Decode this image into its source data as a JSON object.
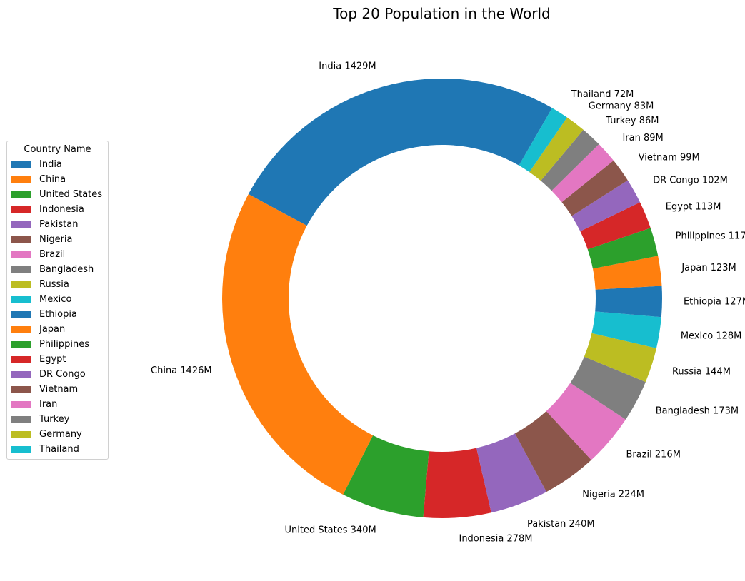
{
  "chart_data": {
    "type": "pie",
    "variant": "donut",
    "title": "Top 20 Population in the World",
    "legend_title": "Country Name",
    "legend_position": "left",
    "unit": "M",
    "slices": [
      {
        "label": "India",
        "value": 1429,
        "color": "#1f77b4"
      },
      {
        "label": "China",
        "value": 1426,
        "color": "#ff7f0e"
      },
      {
        "label": "United States",
        "value": 340,
        "color": "#2ca02c"
      },
      {
        "label": "Indonesia",
        "value": 278,
        "color": "#d62728"
      },
      {
        "label": "Pakistan",
        "value": 240,
        "color": "#9467bd"
      },
      {
        "label": "Nigeria",
        "value": 224,
        "color": "#8c564b"
      },
      {
        "label": "Brazil",
        "value": 216,
        "color": "#e377c2"
      },
      {
        "label": "Bangladesh",
        "value": 173,
        "color": "#7f7f7f"
      },
      {
        "label": "Russia",
        "value": 144,
        "color": "#bcbd22"
      },
      {
        "label": "Mexico",
        "value": 128,
        "color": "#17becf"
      },
      {
        "label": "Ethiopia",
        "value": 127,
        "color": "#1f77b4"
      },
      {
        "label": "Japan",
        "value": 123,
        "color": "#ff7f0e"
      },
      {
        "label": "Philippines",
        "value": 117,
        "color": "#2ca02c"
      },
      {
        "label": "Egypt",
        "value": 113,
        "color": "#d62728"
      },
      {
        "label": "DR Congo",
        "value": 102,
        "color": "#9467bd"
      },
      {
        "label": "Vietnam",
        "value": 99,
        "color": "#8c564b"
      },
      {
        "label": "Iran",
        "value": 89,
        "color": "#e377c2"
      },
      {
        "label": "Turkey",
        "value": 86,
        "color": "#7f7f7f"
      },
      {
        "label": "Germany",
        "value": 83,
        "color": "#bcbd22"
      },
      {
        "label": "Thailand",
        "value": 72,
        "color": "#17becf"
      }
    ]
  }
}
